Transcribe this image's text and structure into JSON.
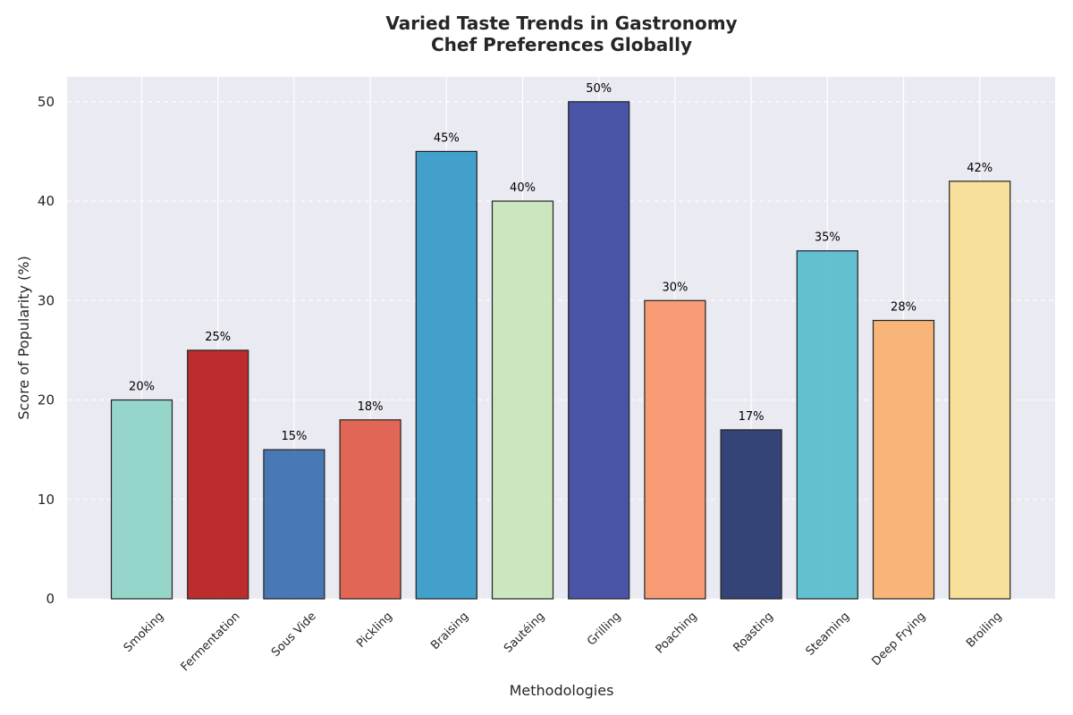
{
  "chart_data": {
    "type": "bar",
    "title_lines": [
      "Varied Taste Trends in Gastronomy",
      "Chef Preferences Globally"
    ],
    "xlabel": "Methodologies",
    "ylabel": "Score of Popularity (%)",
    "categories": [
      "Smoking",
      "Fermentation",
      "Sous Vide",
      "Pickling",
      "Braising",
      "Sautéing",
      "Grilling",
      "Poaching",
      "Roasting",
      "Steaming",
      "Deep Frying",
      "Broiling"
    ],
    "values": [
      20,
      25,
      15,
      18,
      45,
      40,
      50,
      30,
      17,
      35,
      28,
      42
    ],
    "data_labels": [
      "20%",
      "25%",
      "15%",
      "18%",
      "45%",
      "40%",
      "50%",
      "30%",
      "17%",
      "35%",
      "28%",
      "42%"
    ],
    "colors": [
      "#8dd3c7",
      "#b91c1c",
      "#3b6fb0",
      "#e05a48",
      "#3399c8",
      "#c9e6bc",
      "#3b47a0",
      "#f7956a",
      "#24356b",
      "#56bccd",
      "#f7b06f",
      "#f7de92"
    ],
    "ylim": [
      0,
      52.5
    ],
    "yticks": [
      0,
      10,
      20,
      30,
      40,
      50
    ],
    "grid": true,
    "legend": "none"
  }
}
